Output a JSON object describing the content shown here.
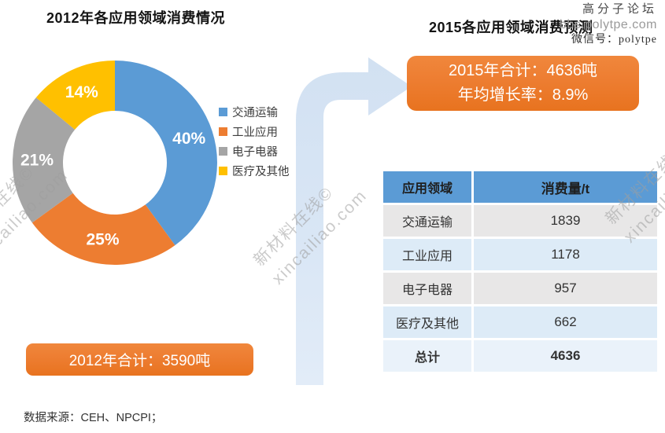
{
  "titles": {
    "left": "2012年各应用领域消费情况",
    "right": "2015各应用领域消费预测"
  },
  "watermark_top_right": {
    "line1": "高分子论坛",
    "line2": "bbs.polytpe.com",
    "line3": "微信号：polytpe"
  },
  "watermark_diagonal": {
    "line1": "新材料在线©",
    "line2": "xincailiao.com"
  },
  "chart_data": {
    "type": "pie",
    "donut": true,
    "title": "2012年各应用领域消费情况",
    "categories": [
      "交通运输",
      "工业应用",
      "电子电器",
      "医疗及其他"
    ],
    "values": [
      40,
      25,
      21,
      14
    ],
    "labels": [
      "40%",
      "25%",
      "21%",
      "14%"
    ],
    "colors": [
      "#5B9BD5",
      "#ED7D31",
      "#A5A5A5",
      "#FFC000"
    ],
    "legend_position": "right",
    "start_angle_deg": -90,
    "direction": "clockwise"
  },
  "callouts": {
    "left_box": "2012年合计：3590吨",
    "right_box_line1": "2015年合计：4636吨",
    "right_box_line2": "年均增长率：8.9%"
  },
  "table": {
    "headers": [
      "应用领域",
      "消费量/t"
    ],
    "rows": [
      {
        "label": "交通运输",
        "value": "1839"
      },
      {
        "label": "工业应用",
        "value": "1178"
      },
      {
        "label": "电子电器",
        "value": "957"
      },
      {
        "label": "医疗及其他",
        "value": "662"
      }
    ],
    "total": {
      "label": "总计",
      "value": "4636"
    }
  },
  "footer": {
    "source": "数据来源：CEH、NPCPI；"
  },
  "palette": {
    "accent_orange": "#ED7D31",
    "table_header_blue": "#5B9BD5",
    "row_gray": "#E8E7E7",
    "row_blue": "#DDEBF7",
    "row_total": "#EAF2FA",
    "arrow_blue_top": "#D2E1F2",
    "arrow_blue_bottom": "#E2ECF8"
  }
}
